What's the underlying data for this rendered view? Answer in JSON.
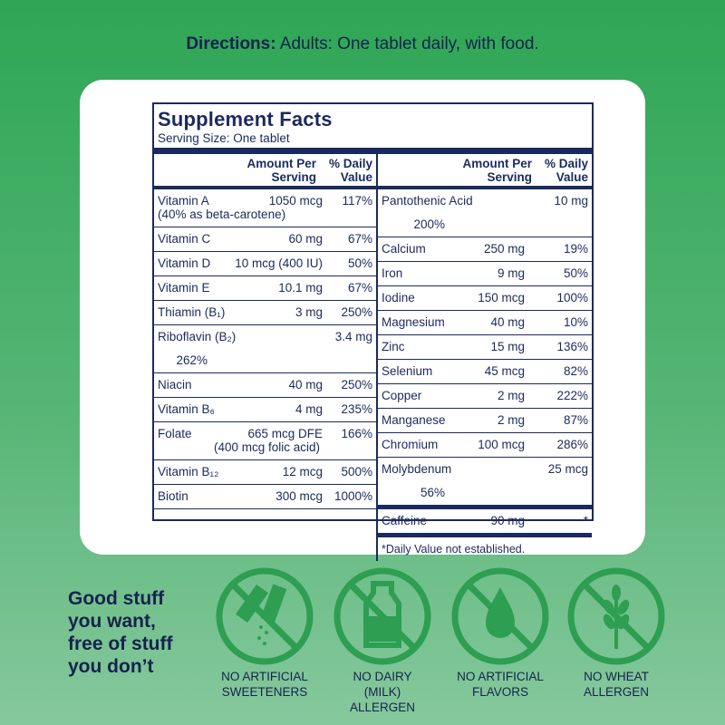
{
  "directions": {
    "label": "Directions:",
    "text": "Adults: One tablet daily, with food."
  },
  "facts": {
    "title": "Supplement Facts",
    "serving_size": "Serving Size: One tablet",
    "header": {
      "amount": [
        "Amount Per",
        "Serving"
      ],
      "dv": [
        "% Daily",
        "Value"
      ]
    },
    "left_rows": [
      {
        "name": "Vitamin A",
        "amount": "1050 mcg",
        "dv": "117%",
        "note": "(40% as beta-carotene)"
      },
      {
        "name": "Vitamin C",
        "amount": "60 mg",
        "dv": "67%"
      },
      {
        "name": "Vitamin D",
        "amount": "10 mcg (400 IU)",
        "dv": "50%"
      },
      {
        "name": "Vitamin E",
        "amount": "10.1 mg",
        "dv": "67%"
      },
      {
        "name": "Thiamin (B₁)",
        "amount": "3 mg",
        "dv": "250%"
      },
      {
        "name": "Riboflavin (B₂)",
        "amount": "3.4 mg",
        "dv": "262%"
      },
      {
        "name": "Niacin",
        "amount": "40 mg",
        "dv": "250%"
      },
      {
        "name": "Vitamin B₆",
        "amount": "4 mg",
        "dv": "235%"
      },
      {
        "name": "Folate",
        "amount": "665 mcg DFE",
        "dv": "166%",
        "amount_note": "(400 mcg folic acid)"
      },
      {
        "name": "Vitamin B₁₂",
        "amount": "12 mcg",
        "dv": "500%"
      },
      {
        "name": "Biotin",
        "amount": "300 mcg",
        "dv": "1000%"
      }
    ],
    "right_rows": [
      {
        "name": "Pantothenic Acid",
        "amount": "10 mg",
        "dv": "200%"
      },
      {
        "name": "Calcium",
        "amount": "250 mg",
        "dv": "19%"
      },
      {
        "name": "Iron",
        "amount": "9 mg",
        "dv": "50%"
      },
      {
        "name": "Iodine",
        "amount": "150 mcg",
        "dv": "100%"
      },
      {
        "name": "Magnesium",
        "amount": "40 mg",
        "dv": "10%"
      },
      {
        "name": "Zinc",
        "amount": "15 mg",
        "dv": "136%"
      },
      {
        "name": "Selenium",
        "amount": "45 mcg",
        "dv": "82%"
      },
      {
        "name": "Copper",
        "amount": "2 mg",
        "dv": "222%"
      },
      {
        "name": "Manganese",
        "amount": "2 mg",
        "dv": "87%"
      },
      {
        "name": "Chromium",
        "amount": "100 mcg",
        "dv": "286%"
      },
      {
        "name": "Molybdenum",
        "amount": "25 mcg",
        "dv": "56%"
      }
    ],
    "caffeine": {
      "name": "Caffeine",
      "amount": "90 mg",
      "dv": "*"
    },
    "footnote": "*Daily Value not established."
  },
  "tagline": [
    "Good stuff",
    "you want,",
    "free of stuff",
    "you don’t"
  ],
  "badges": [
    {
      "label": [
        "NO ARTIFICIAL",
        "SWEETENERS"
      ]
    },
    {
      "label": [
        "NO DAIRY",
        "(MILK)",
        "ALLERGEN"
      ]
    },
    {
      "label": [
        "NO ARTIFICIAL",
        "FLAVORS"
      ]
    },
    {
      "label": [
        "NO WHEAT",
        "ALLERGEN"
      ]
    }
  ]
}
